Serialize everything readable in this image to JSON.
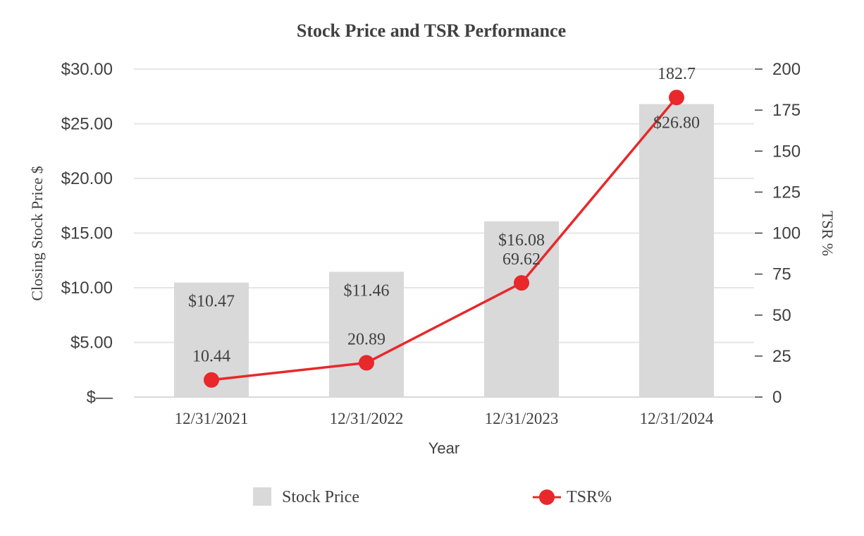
{
  "chart_data": {
    "type": "bar",
    "title": "Stock Price and TSR Performance",
    "xlabel": "Year",
    "ylabel": "Closing Stock Price $",
    "y2label": "TSR %",
    "categories": [
      "12/31/2021",
      "12/31/2022",
      "12/31/2023",
      "12/31/2024"
    ],
    "ylim": [
      0,
      30
    ],
    "y_ticks": [
      0,
      5,
      10,
      15,
      20,
      25,
      30
    ],
    "y_tick_labels": [
      "$—",
      "$5.00",
      "$10.00",
      "$15.00",
      "$20.00",
      "$25.00",
      "$30.00"
    ],
    "y2lim": [
      0,
      200
    ],
    "y2_ticks": [
      0,
      25,
      50,
      75,
      100,
      125,
      150,
      175,
      200
    ],
    "y2_tick_labels": [
      "0",
      "25",
      "50",
      "75",
      "100",
      "125",
      "150",
      "175",
      "200"
    ],
    "series": [
      {
        "name": "Stock Price",
        "type": "bar",
        "axis": "left",
        "values": [
          10.47,
          11.46,
          16.08,
          26.8
        ],
        "data_labels": [
          "$10.47",
          "$11.46",
          "$16.08",
          "$26.80"
        ],
        "color": "#d9d9d9"
      },
      {
        "name": "TSR%",
        "type": "line",
        "axis": "right",
        "values": [
          10.44,
          20.89,
          69.62,
          182.7
        ],
        "data_labels": [
          "10.44",
          "20.89",
          "69.62",
          "182.7"
        ],
        "color": "#e8282b"
      }
    ],
    "legend": [
      "Stock Price",
      "TSR%"
    ],
    "grid": true,
    "legend_position": "bottom"
  },
  "colors": {
    "grid": "#e6e6e6",
    "axis_text": "#404040",
    "title": "#404040"
  }
}
